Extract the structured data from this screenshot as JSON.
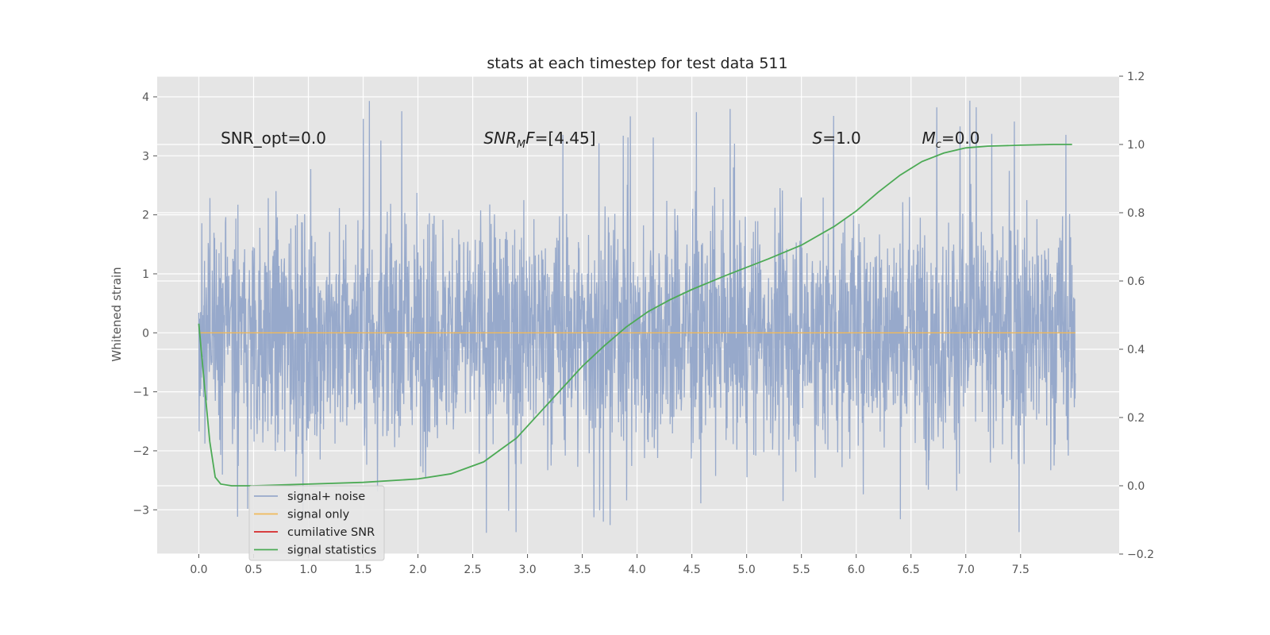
{
  "chart_data": {
    "type": "line",
    "title": "stats at each timestep for test data 511",
    "xlabel": "",
    "ylabel": "Whitened strain",
    "y2label": "",
    "xlim": [
      -0.38,
      8.4
    ],
    "ylim": [
      -3.75,
      4.35
    ],
    "y2lim": [
      -0.2,
      1.2
    ],
    "xticks": [
      "0.0",
      "0.5",
      "1.0",
      "1.5",
      "2.0",
      "2.5",
      "3.0",
      "3.5",
      "4.0",
      "4.5",
      "5.0",
      "5.5",
      "6.0",
      "6.5",
      "7.0",
      "7.5"
    ],
    "xtick_values": [
      0,
      0.5,
      1,
      1.5,
      2,
      2.5,
      3,
      3.5,
      4,
      4.5,
      5,
      5.5,
      6,
      6.5,
      7,
      7.5
    ],
    "yticks": [
      "4",
      "3",
      "2",
      "1",
      "0",
      "−1",
      "−2",
      "−3"
    ],
    "ytick_values": [
      4,
      3,
      2,
      1,
      0,
      -1,
      -2,
      -3
    ],
    "y2ticks": [
      "1.2",
      "1.0",
      "0.8",
      "0.6",
      "0.4",
      "0.2",
      "0.0",
      "−0.2"
    ],
    "y2tick_values": [
      1.2,
      1.0,
      0.8,
      0.6,
      0.4,
      0.2,
      0.0,
      -0.2
    ],
    "grid": true,
    "legend": {
      "position": "lower-left",
      "entries": [
        {
          "label": "signal+ noise",
          "color": "#97a9cb"
        },
        {
          "label": "signal only",
          "color": "#f0b95a"
        },
        {
          "label": "cumilative SNR",
          "color": "#d62728"
        },
        {
          "label": "signal statistics",
          "color": "#4caa55"
        }
      ]
    },
    "series": [
      {
        "name": "signal+ noise",
        "color": "#97a9cb",
        "axis": "left",
        "kind": "noise",
        "x_range": [
          0,
          8.0
        ],
        "envelope": {
          "upper_typical": 2.3,
          "lower_typical": -2.3,
          "max": 4.0,
          "min": -3.4
        }
      },
      {
        "name": "signal only",
        "color": "#f0b95a",
        "axis": "left",
        "x": [
          0,
          8.0
        ],
        "y": [
          0,
          0
        ]
      },
      {
        "name": "cumilative SNR",
        "color": "#d62728",
        "axis": "right",
        "x": [],
        "y": []
      },
      {
        "name": "signal statistics",
        "color": "#4caa55",
        "axis": "right",
        "x": [
          0.0,
          0.05,
          0.1,
          0.15,
          0.2,
          0.3,
          0.5,
          1.0,
          1.5,
          2.0,
          2.3,
          2.6,
          2.9,
          3.1,
          3.3,
          3.5,
          3.7,
          3.9,
          4.1,
          4.3,
          4.5,
          4.8,
          5.0,
          5.2,
          5.5,
          5.8,
          6.0,
          6.2,
          6.4,
          6.6,
          6.8,
          7.0,
          7.2,
          7.5,
          7.8,
          7.97
        ],
        "y": [
          0.475,
          0.3,
          0.13,
          0.025,
          0.005,
          0.0,
          0.0,
          0.005,
          0.01,
          0.02,
          0.035,
          0.07,
          0.14,
          0.21,
          0.28,
          0.35,
          0.41,
          0.465,
          0.51,
          0.545,
          0.575,
          0.615,
          0.64,
          0.665,
          0.705,
          0.76,
          0.805,
          0.86,
          0.91,
          0.95,
          0.975,
          0.99,
          0.995,
          0.998,
          1.0,
          1.0
        ]
      }
    ],
    "annotations": [
      {
        "text": "SNR_opt=0.0",
        "x": 0.2,
        "y": 3.3
      },
      {
        "text": "SNR_MF=[4.45]",
        "x": 2.6,
        "y": 3.3
      },
      {
        "text": "S=1.0",
        "x": 5.6,
        "y": 3.3
      },
      {
        "text": "M_c=0.0",
        "x": 6.6,
        "y": 3.3
      }
    ]
  }
}
